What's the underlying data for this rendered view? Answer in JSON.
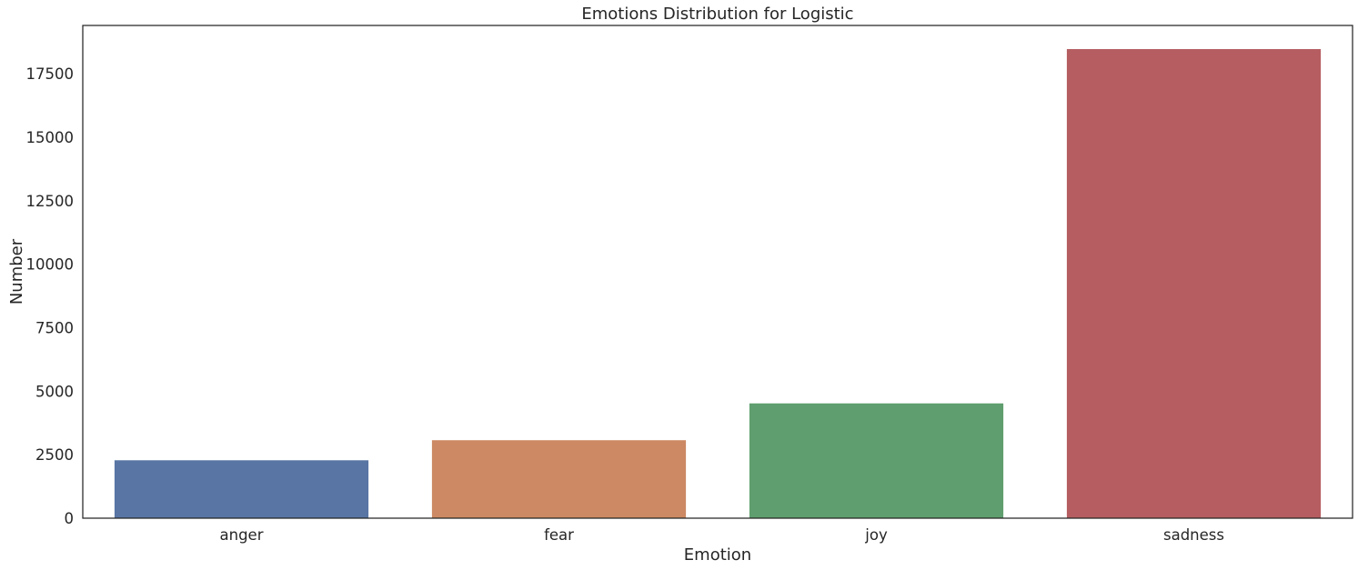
{
  "chart_data": {
    "type": "bar",
    "title": "Emotions Distribution for Logistic",
    "xlabel": "Emotion",
    "ylabel": "Number",
    "categories": [
      "anger",
      "fear",
      "joy",
      "sadness"
    ],
    "values": [
      2280,
      3070,
      4520,
      18470
    ],
    "colors": [
      "#5875a4",
      "#cc8963",
      "#5f9e6e",
      "#b55d60"
    ],
    "ylim": [
      0,
      19400
    ],
    "yticks": [
      0,
      2500,
      5000,
      7500,
      10000,
      12500,
      15000,
      17500
    ],
    "grid": false,
    "legend": "none"
  }
}
